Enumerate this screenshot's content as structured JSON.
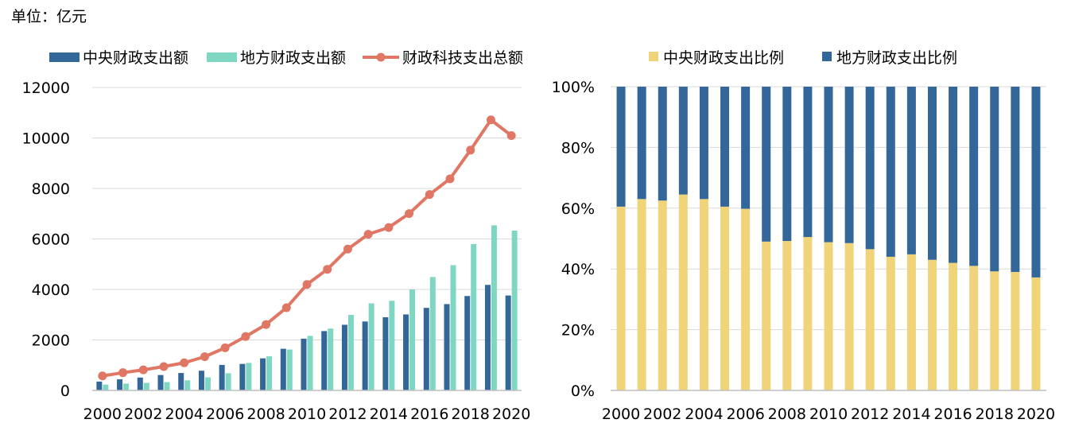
{
  "unit_label": "单位：亿元",
  "colors": {
    "central": "#336699",
    "local": "#7fd6c2",
    "total": "#e07765",
    "central_ratio": "#f0d47a",
    "local_ratio": "#336699",
    "grid": "#d9d9d9",
    "axis": "#bfbfbf"
  },
  "chart_data": [
    {
      "type": "bar+line",
      "title": "",
      "xlabel": "",
      "ylabel": "",
      "ylim": [
        0,
        12000
      ],
      "yticks": [
        0,
        2000,
        4000,
        6000,
        8000,
        10000,
        12000
      ],
      "x": [
        2000,
        2001,
        2002,
        2003,
        2004,
        2005,
        2006,
        2007,
        2008,
        2009,
        2010,
        2011,
        2012,
        2013,
        2014,
        2015,
        2016,
        2017,
        2018,
        2019,
        2020
      ],
      "xtick_labels": [
        "2000",
        "2002",
        "2004",
        "2006",
        "2008",
        "2010",
        "2012",
        "2014",
        "2016",
        "2018",
        "2020"
      ],
      "legend_position": "top",
      "grid": true,
      "series": [
        {
          "name": "中央财政支出额",
          "type": "bar",
          "values": [
            350,
            440,
            510,
            610,
            690,
            780,
            1010,
            1050,
            1270,
            1650,
            2050,
            2350,
            2600,
            2730,
            2900,
            3010,
            3270,
            3420,
            3740,
            4180,
            3760
          ]
        },
        {
          "name": "地方财政支出额",
          "type": "bar",
          "values": [
            230,
            270,
            300,
            330,
            400,
            520,
            680,
            1090,
            1350,
            1620,
            2160,
            2450,
            2990,
            3450,
            3550,
            4000,
            4490,
            4960,
            5800,
            6540,
            6330
          ]
        },
        {
          "name": "财政科技支出总额",
          "type": "line",
          "values": [
            575,
            703,
            816,
            944,
            1095,
            1335,
            1689,
            2135,
            2611,
            3277,
            4197,
            4797,
            5600,
            6184,
            6454,
            7005,
            7761,
            8383,
            9518,
            10717,
            10095
          ]
        }
      ]
    },
    {
      "type": "stacked_bar_percent",
      "title": "",
      "xlabel": "",
      "ylabel": "",
      "ylim": [
        0,
        100
      ],
      "yticks": [
        "0%",
        "20%",
        "40%",
        "60%",
        "80%",
        "100%"
      ],
      "x": [
        2000,
        2001,
        2002,
        2003,
        2004,
        2005,
        2006,
        2007,
        2008,
        2009,
        2010,
        2011,
        2012,
        2013,
        2014,
        2015,
        2016,
        2017,
        2018,
        2019,
        2020
      ],
      "xtick_labels": [
        "2000",
        "2002",
        "2004",
        "2006",
        "2008",
        "2010",
        "2012",
        "2014",
        "2016",
        "2018",
        "2020"
      ],
      "legend_position": "top",
      "grid": true,
      "series": [
        {
          "name": "中央财政支出比例",
          "values": [
            60.5,
            63,
            62.5,
            64.5,
            63,
            60.5,
            59.8,
            49,
            49.2,
            50.5,
            48.8,
            48.5,
            46.5,
            44,
            44.8,
            43,
            42,
            41,
            39.2,
            39,
            37.2
          ]
        },
        {
          "name": "地方财政支出比例",
          "values": [
            39.5,
            37,
            37.5,
            35.5,
            37,
            39.5,
            40.2,
            51,
            50.8,
            49.5,
            51.2,
            51.5,
            53.5,
            56,
            55.2,
            57,
            58,
            59,
            60.8,
            61,
            62.8
          ]
        }
      ]
    }
  ]
}
